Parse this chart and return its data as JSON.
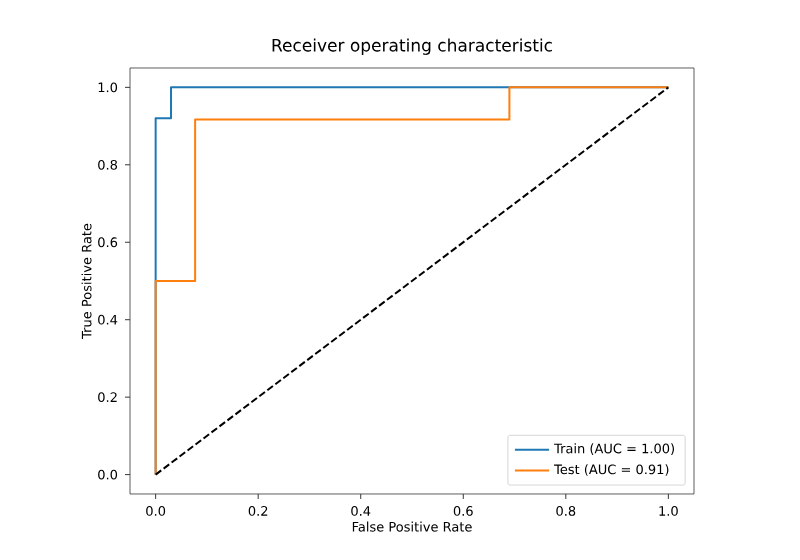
{
  "chart_data": {
    "type": "line",
    "title": "Receiver operating characteristic",
    "xlabel": "False Positive Rate",
    "ylabel": "True Positive Rate",
    "xlim": [
      -0.05,
      1.05
    ],
    "ylim": [
      -0.05,
      1.05
    ],
    "xticks": [
      {
        "value": 0,
        "label": "0.0"
      },
      {
        "value": 0.2,
        "label": "0.2"
      },
      {
        "value": 0.4,
        "label": "0.4"
      },
      {
        "value": 0.6,
        "label": "0.6"
      },
      {
        "value": 0.8,
        "label": "0.8"
      },
      {
        "value": 1,
        "label": "1.0"
      }
    ],
    "yticks": [
      {
        "value": 0,
        "label": "0.0"
      },
      {
        "value": 0.2,
        "label": "0.2"
      },
      {
        "value": 0.4,
        "label": "0.4"
      },
      {
        "value": 0.6,
        "label": "0.6"
      },
      {
        "value": 0.8,
        "label": "0.8"
      },
      {
        "value": 1,
        "label": "1.0"
      }
    ],
    "legend": "bottom right",
    "grid": false,
    "marker": "none",
    "series": [
      {
        "name": "Train (AUC = 1.00)",
        "color": "#1f77b4",
        "x": [
          0,
          0,
          0.03,
          0.03,
          1
        ],
        "values": [
          0,
          0.92,
          0.92,
          1,
          1
        ]
      },
      {
        "name": "Test (AUC = 0.91)",
        "color": "#ff7f0e",
        "x": [
          0,
          0,
          0.077,
          0.077,
          0.69,
          0.69,
          1
        ],
        "values": [
          0,
          0.5,
          0.5,
          0.917,
          0.917,
          1,
          1
        ]
      },
      {
        "color": "#000000",
        "line_style": "dashed",
        "x": [
          0,
          1
        ],
        "values": [
          0,
          1
        ]
      }
    ]
  }
}
